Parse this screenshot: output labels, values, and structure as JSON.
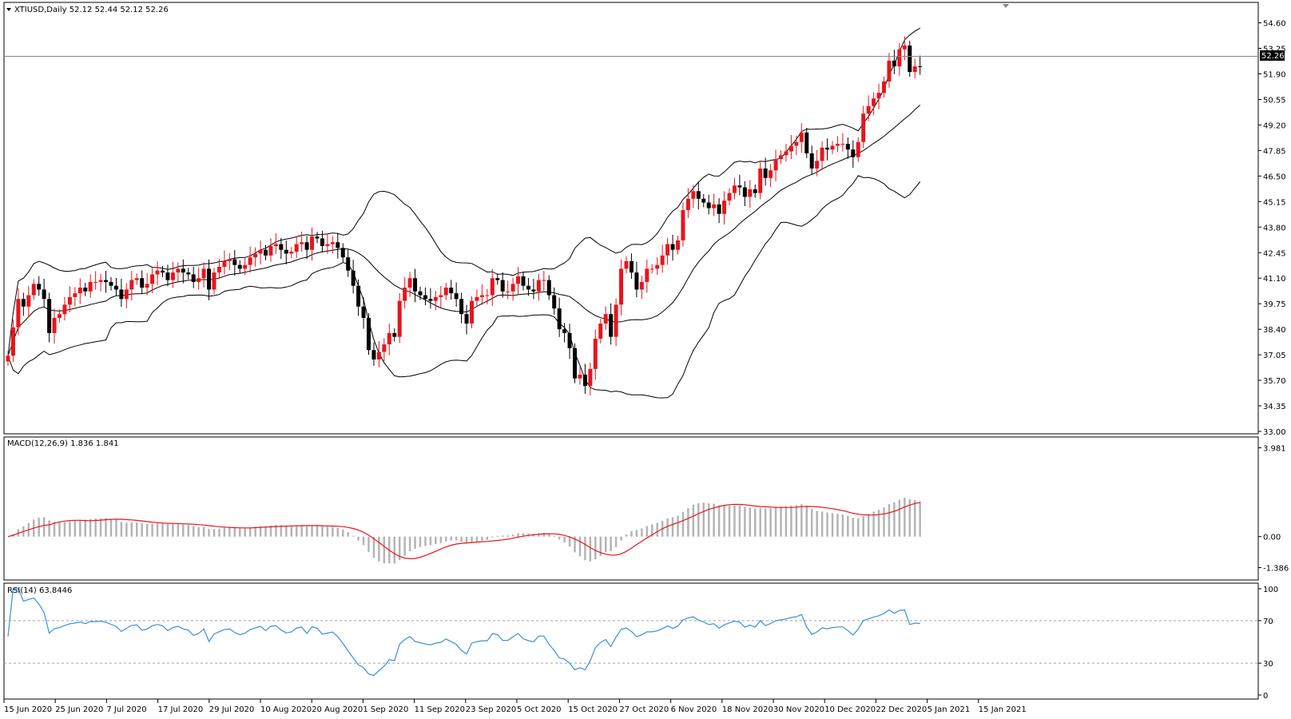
{
  "symbol_header": "XTIUSD,Daily  52.12 52.44 52.12 52.26",
  "macd_header": "MACD(12,26,9) 1.836 1.841",
  "rsi_header": "RSI(14) 63.8446",
  "current_price_label": "52.26",
  "colors": {
    "bull": "#e8141c",
    "bear": "#000000",
    "band": "#000000",
    "macd_hist": "#b4b4b4",
    "macd_signal": "#e8141c",
    "rsi_line": "#3a8fe0",
    "rsi_levels": "#a0a0a0",
    "frame": "#000000"
  },
  "chart_data": [
    {
      "type": "candlestick",
      "title": "XTIUSD,Daily",
      "ohlc_last": {
        "open": 52.12,
        "high": 52.44,
        "low": 52.12,
        "close": 52.26
      },
      "y_ticks": [
        "54.60",
        "53.25",
        "51.90",
        "50.55",
        "49.20",
        "47.85",
        "46.50",
        "45.15",
        "43.80",
        "42.45",
        "41.10",
        "39.75",
        "38.40",
        "37.05",
        "35.70",
        "34.35",
        "33.00"
      ],
      "ylim": [
        33.0,
        55.3
      ],
      "x_ticks": [
        "15 Jun 2020",
        "25 Jun 2020",
        "7 Jul 2020",
        "17 Jul 2020",
        "29 Jul 2020",
        "10 Aug 2020",
        "20 Aug 2020",
        "1 Sep 2020",
        "11 Sep 2020",
        "23 Sep 2020",
        "5 Oct 2020",
        "15 Oct 2020",
        "27 Oct 2020",
        "6 Nov 2020",
        "18 Nov 2020",
        "30 Nov 2020",
        "10 Dec 2020",
        "22 Dec 2020",
        "5 Jan 2021",
        "15 Jan 2021"
      ],
      "closes": [
        37.0,
        38.5,
        40.0,
        39.6,
        40.2,
        40.8,
        40.5,
        40.0,
        38.2,
        39.0,
        39.2,
        39.7,
        40.1,
        40.3,
        40.6,
        40.4,
        40.9,
        40.9,
        41.0,
        40.9,
        40.7,
        40.5,
        40.0,
        40.5,
        41.0,
        41.1,
        40.6,
        40.8,
        41.3,
        41.5,
        41.4,
        41.0,
        41.4,
        41.6,
        41.4,
        41.3,
        40.9,
        41.1,
        41.6,
        40.5,
        41.4,
        41.7,
        42.0,
        42.1,
        41.8,
        41.6,
        41.8,
        42.2,
        42.4,
        42.6,
        42.3,
        42.8,
        42.9,
        42.6,
        42.4,
        42.5,
        42.9,
        43.0,
        42.6,
        43.3,
        43.2,
        42.8,
        42.9,
        43.0,
        42.7,
        42.2,
        41.5,
        40.7,
        39.6,
        39.0,
        37.3,
        36.8,
        37.2,
        37.6,
        38.2,
        38.0,
        39.9,
        40.6,
        41.1,
        40.4,
        40.2,
        40.0,
        39.9,
        40.1,
        40.2,
        40.6,
        40.3,
        40.0,
        39.2,
        38.7,
        39.9,
        40.1,
        40.2,
        40.2,
        41.1,
        41.0,
        40.4,
        40.4,
        40.8,
        41.2,
        40.7,
        40.5,
        40.4,
        41.0,
        41.0,
        40.2,
        39.5,
        38.4,
        38.2,
        37.4,
        35.8,
        36.0,
        35.4,
        36.3,
        37.9,
        38.7,
        39.2,
        38.0,
        39.7,
        41.6,
        42.0,
        41.4,
        40.5,
        40.9,
        41.6,
        41.6,
        41.8,
        42.3,
        42.9,
        42.6,
        43.1,
        44.7,
        45.3,
        45.7,
        45.3,
        45.1,
        44.8,
        45.0,
        44.5,
        45.2,
        45.6,
        46.0,
        45.9,
        45.4,
        45.8,
        45.6,
        46.9,
        46.4,
        46.8,
        47.4,
        47.6,
        47.8,
        48.1,
        48.3,
        48.8,
        47.7,
        46.9,
        47.3,
        48.0,
        47.9,
        48.1,
        48.2,
        48.2,
        47.9,
        47.5,
        48.3,
        49.8,
        50.2,
        50.6,
        50.9,
        51.5,
        52.6,
        52.3,
        53.2,
        53.4,
        52.0,
        52.3,
        52.26
      ]
    },
    {
      "type": "histogram+line",
      "title": "MACD(12,26,9)",
      "y_ticks": [
        "3.981",
        "0.00",
        "-1.386"
      ],
      "ylim": [
        -1.55,
        4.25
      ],
      "last_main": 1.836,
      "last_signal": 1.841
    },
    {
      "type": "line",
      "title": "RSI(14)",
      "y_ticks": [
        "100",
        "70",
        "30",
        "0"
      ],
      "ylim": [
        0,
        100
      ],
      "levels": [
        70,
        30
      ],
      "last_value": 63.8446
    }
  ]
}
